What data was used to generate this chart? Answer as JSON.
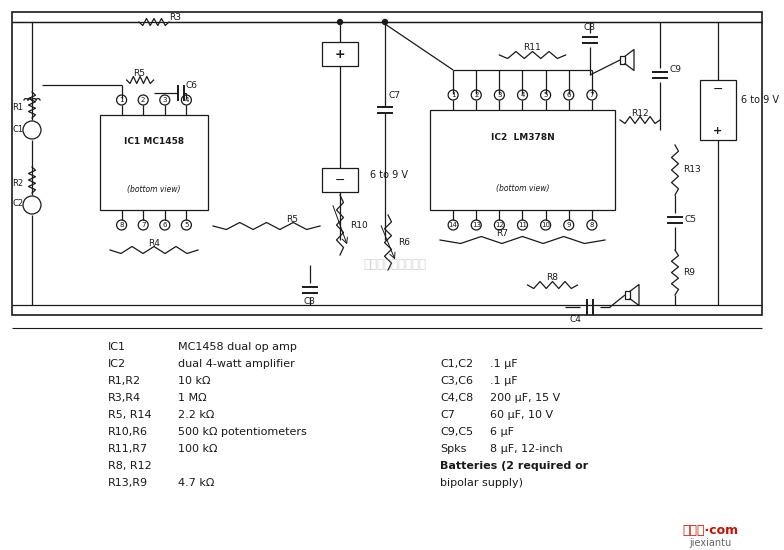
{
  "bg_color": "#ffffff",
  "line_color": "#1a1a1a",
  "component_list_left": [
    [
      "IC1",
      "MC1458 dual op amp"
    ],
    [
      "IC2",
      "dual 4-watt amplifier"
    ],
    [
      "R1,R2",
      "10 kΩ"
    ],
    [
      "R3,R4",
      "1 MΩ"
    ],
    [
      "R5, R14",
      "2.2 kΩ"
    ],
    [
      "R10,R6",
      "500 kΩ potentiometers"
    ],
    [
      "R11,R7",
      "100 kΩ"
    ],
    [
      "R8, R12",
      ""
    ],
    [
      "R13,R9",
      "4.7 kΩ"
    ]
  ],
  "component_list_right": [
    [
      "C1,C2",
      ".1 μF"
    ],
    [
      "C3,C6",
      ".1 μF"
    ],
    [
      "C4,C8",
      "200 μF, 15 V"
    ],
    [
      "C7",
      "60 μF, 10 V"
    ],
    [
      "C9,C5",
      "6 μF"
    ],
    [
      "Spks",
      "8 μF, 12-inch"
    ],
    [
      "Batteries (2 required or",
      ""
    ],
    [
      "bipolar supply)",
      ""
    ]
  ],
  "watermark": "析蒙睛科技有限公司",
  "website_text": "接线图·com",
  "website_sub": "jiexiantu"
}
